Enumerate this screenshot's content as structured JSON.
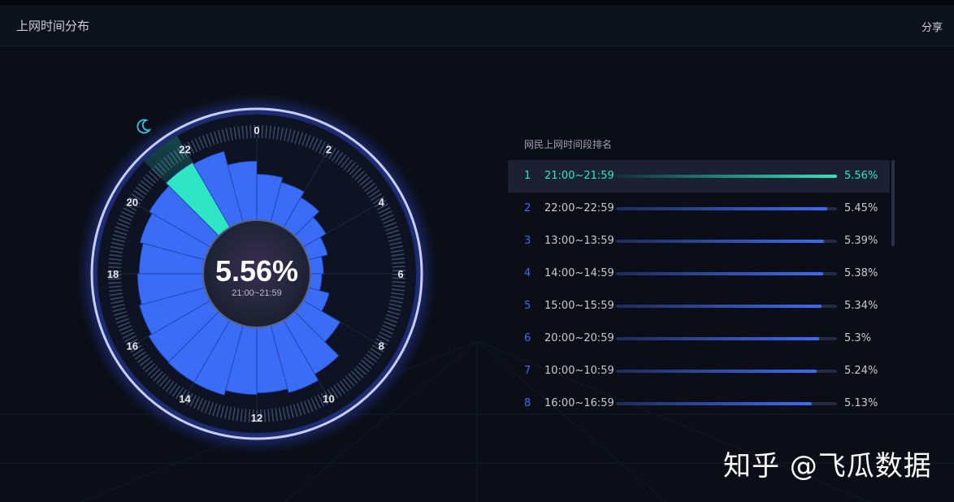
{
  "header": {
    "title": "上网时间分布",
    "share_label": "分享"
  },
  "center": {
    "value": "5.56%",
    "range": "21:00~21:59"
  },
  "icons": {
    "night": "moon-icon"
  },
  "colors": {
    "accent": "#2ee6c3",
    "bar": "#3b6cf6",
    "background": "#0b0e17"
  },
  "chart_data": {
    "type": "bar",
    "layout": "polar",
    "categories": [
      "0",
      "1",
      "2",
      "3",
      "4",
      "5",
      "6",
      "7",
      "8",
      "9",
      "10",
      "11",
      "12",
      "13",
      "14",
      "15",
      "16",
      "17",
      "18",
      "19",
      "20",
      "21",
      "22",
      "23"
    ],
    "values": [
      3.8,
      3.5,
      3.1,
      2.6,
      2.2,
      1.8,
      1.7,
      2.3,
      3.6,
      4.8,
      5.24,
      5.0,
      5.1,
      5.39,
      5.38,
      5.34,
      5.13,
      5.0,
      4.9,
      5.1,
      5.3,
      5.56,
      5.45,
      4.6
    ],
    "highlight_index": 21,
    "hour_ticks": [
      "0",
      "2",
      "4",
      "6",
      "8",
      "10",
      "12",
      "14",
      "16",
      "18",
      "20",
      "22"
    ],
    "unit": "%"
  },
  "ranking": {
    "title": "网民上网时间段排名",
    "items": [
      {
        "rank": "1",
        "time": "21:00~21:59",
        "value": "5.56%",
        "pct": 5.56
      },
      {
        "rank": "2",
        "time": "22:00~22:59",
        "value": "5.45%",
        "pct": 5.45
      },
      {
        "rank": "3",
        "time": "13:00~13:59",
        "value": "5.39%",
        "pct": 5.39
      },
      {
        "rank": "4",
        "time": "14:00~14:59",
        "value": "5.38%",
        "pct": 5.38
      },
      {
        "rank": "5",
        "time": "15:00~15:59",
        "value": "5.34%",
        "pct": 5.34
      },
      {
        "rank": "6",
        "time": "20:00~20:59",
        "value": "5.3%",
        "pct": 5.3
      },
      {
        "rank": "7",
        "time": "10:00~10:59",
        "value": "5.24%",
        "pct": 5.24
      },
      {
        "rank": "8",
        "time": "16:00~16:59",
        "value": "5.13%",
        "pct": 5.13
      }
    ]
  },
  "watermark": "知乎 @飞瓜数据"
}
